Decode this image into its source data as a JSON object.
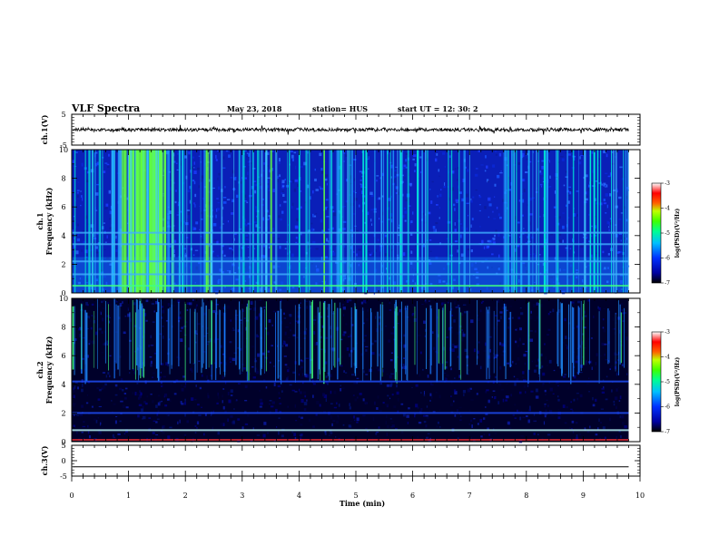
{
  "header": {
    "title": "VLF Spectra",
    "date": "May 23, 2018",
    "station": "station= HUS",
    "start": "start  UT  =   12: 30: 2"
  },
  "chart_data": {
    "type": "heatmap",
    "x_axis": {
      "label": "Time  (min)",
      "range": [
        0,
        10
      ],
      "ticks": [
        "0",
        "1",
        "2",
        "3",
        "4",
        "5",
        "6",
        "7",
        "8",
        "9",
        "10"
      ]
    },
    "panels": [
      {
        "kind": "waveform",
        "ylabel": "ch.1(V)",
        "yrange": [
          -5,
          5
        ],
        "yticks": [
          "5",
          "-5"
        ],
        "baseline": 0
      },
      {
        "kind": "spectrogram",
        "ylabel_channel": "ch.1",
        "ylabel": "Frequency (kHz)",
        "yrange": [
          0,
          10
        ],
        "yticks": [
          "0",
          "2",
          "4",
          "6",
          "8",
          "10"
        ],
        "data_end_min": 9.8,
        "background": "moderate broadband noise (log PSD about -6 to -5) with strong impulsive sferics, most intense between 0.8 and 1.8 min",
        "horizontal_lines_khz": [
          0.5,
          1.3,
          2.2,
          3.4,
          4.2
        ]
      },
      {
        "kind": "spectrogram",
        "ylabel_channel": "ch.2",
        "ylabel": "Frequency (kHz)",
        "yrange": [
          0,
          10
        ],
        "yticks": [
          "0",
          "2",
          "4",
          "6",
          "8",
          "10"
        ],
        "data_end_min": 9.8,
        "background": "low noise (log PSD about -7 to -6) with scattered impulsive sferics above 4 kHz",
        "horizontal_lines_khz": [
          0.8,
          2.0,
          4.2
        ]
      },
      {
        "kind": "waveform",
        "ylabel": "ch.3(V)",
        "yrange": [
          -5,
          5
        ],
        "yticks": [
          "5",
          "0",
          "-5"
        ],
        "baseline": -2
      }
    ],
    "colorbar": {
      "label": "log(PSD)(V²/Hz)",
      "range": [
        -7,
        -3
      ],
      "ticks": [
        "-3",
        "-4",
        "-5",
        "-6",
        "-7"
      ]
    }
  }
}
